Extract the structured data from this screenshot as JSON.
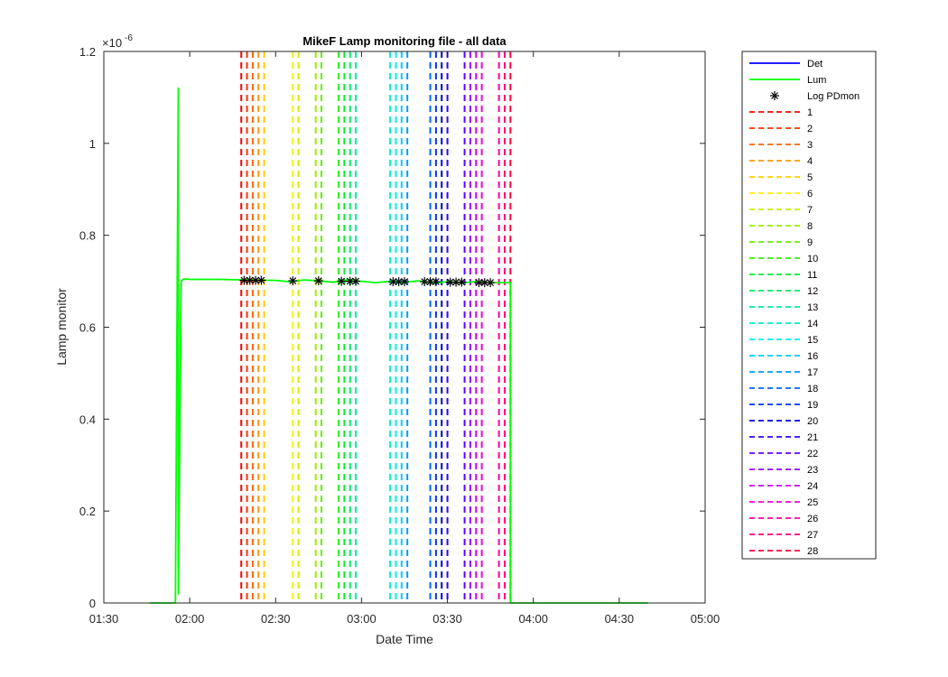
{
  "chart_data": {
    "type": "line",
    "title": "MikeF Lamp monitoring file - all data",
    "xlabel": "Date Time",
    "ylabel": "Lamp monitor",
    "y_exponent_label": "×10",
    "y_exponent_power": "-6",
    "xlim": [
      "01:30",
      "05:00"
    ],
    "ylim": [
      0,
      1.2
    ],
    "x_ticks": [
      "01:30",
      "02:00",
      "02:30",
      "03:00",
      "03:30",
      "04:00",
      "04:30",
      "05:00"
    ],
    "y_ticks": [
      {
        "value": 0,
        "label": "0"
      },
      {
        "value": 0.2,
        "label": "0.2"
      },
      {
        "value": 0.4,
        "label": "0.4"
      },
      {
        "value": 0.6,
        "label": "0.6"
      },
      {
        "value": 0.8,
        "label": "0.8"
      },
      {
        "value": 1.0,
        "label": "1"
      },
      {
        "value": 1.2,
        "label": "1.2"
      }
    ],
    "grid": false,
    "legend_position": "outside-right",
    "series": [
      {
        "name": "Det",
        "color": "#0000ff",
        "style": "solid",
        "x": [],
        "y": []
      },
      {
        "name": "Lum",
        "color": "#00ff00",
        "style": "solid",
        "x": [
          "01:46",
          "01:51",
          "01:55",
          "01:56",
          "01:56",
          "01:57",
          "01:58",
          "02:00",
          "02:10",
          "02:20",
          "02:30",
          "02:35",
          "02:40",
          "02:45",
          "02:50",
          "02:55",
          "03:00",
          "03:05",
          "03:10",
          "03:15",
          "03:20",
          "03:25",
          "03:30",
          "03:35",
          "03:40",
          "03:45",
          "03:50",
          "03:52",
          "03:52",
          "03:55",
          "04:10",
          "04:30",
          "04:40"
        ],
        "y": [
          0,
          0,
          0,
          1.12,
          0.02,
          0.7,
          0.705,
          0.704,
          0.704,
          0.703,
          0.702,
          0.699,
          0.703,
          0.701,
          0.698,
          0.703,
          0.7,
          0.697,
          0.7,
          0.698,
          0.701,
          0.696,
          0.699,
          0.697,
          0.699,
          0.697,
          0.697,
          0.697,
          0.0,
          0.0,
          0.0,
          0.0,
          0.0
        ]
      },
      {
        "name": "Log PDmon",
        "color": "#000000",
        "style": "asterisk",
        "x": [
          "02:19",
          "02:21",
          "02:23",
          "02:25",
          "02:36",
          "02:45",
          "02:53",
          "02:56",
          "02:58",
          "03:11",
          "03:13",
          "03:15",
          "03:22",
          "03:24",
          "03:26",
          "03:31",
          "03:33",
          "03:35",
          "03:41",
          "03:43",
          "03:45"
        ],
        "y": [
          0.702,
          0.702,
          0.702,
          0.702,
          0.701,
          0.701,
          0.7,
          0.7,
          0.7,
          0.699,
          0.699,
          0.699,
          0.699,
          0.699,
          0.699,
          0.698,
          0.698,
          0.698,
          0.697,
          0.697,
          0.697
        ]
      }
    ],
    "vertical_lines": [
      {
        "name": "1",
        "x": "02:18",
        "color": "#ff0000"
      },
      {
        "name": "2",
        "x": "02:20",
        "color": "#ff3300"
      },
      {
        "name": "3",
        "x": "02:22",
        "color": "#ff6600"
      },
      {
        "name": "4",
        "x": "02:24",
        "color": "#ff9900"
      },
      {
        "name": "5",
        "x": "02:26",
        "color": "#ffcc00"
      },
      {
        "name": "6",
        "x": "02:36",
        "color": "#ffee00"
      },
      {
        "name": "7",
        "x": "02:38",
        "color": "#ccee00"
      },
      {
        "name": "8",
        "x": "02:44",
        "color": "#99ee00"
      },
      {
        "name": "9",
        "x": "02:46",
        "color": "#66ee00"
      },
      {
        "name": "10",
        "x": "02:52",
        "color": "#33ee00"
      },
      {
        "name": "11",
        "x": "02:54",
        "color": "#00ee33"
      },
      {
        "name": "12",
        "x": "02:56",
        "color": "#00ee66"
      },
      {
        "name": "13",
        "x": "02:58",
        "color": "#00ee99"
      },
      {
        "name": "14",
        "x": "03:10",
        "color": "#00eecc"
      },
      {
        "name": "15",
        "x": "03:12",
        "color": "#00eeee"
      },
      {
        "name": "16",
        "x": "03:14",
        "color": "#00ccff"
      },
      {
        "name": "17",
        "x": "03:16",
        "color": "#0099ff"
      },
      {
        "name": "18",
        "x": "03:24",
        "color": "#0066ff"
      },
      {
        "name": "19",
        "x": "03:26",
        "color": "#0033ff"
      },
      {
        "name": "20",
        "x": "03:28",
        "color": "#0000dd"
      },
      {
        "name": "21",
        "x": "03:30",
        "color": "#3300ff"
      },
      {
        "name": "22",
        "x": "03:36",
        "color": "#6600ff"
      },
      {
        "name": "23",
        "x": "03:38",
        "color": "#9900ff"
      },
      {
        "name": "24",
        "x": "03:40",
        "color": "#cc00ff"
      },
      {
        "name": "25",
        "x": "03:42",
        "color": "#ee00dd"
      },
      {
        "name": "26",
        "x": "03:48",
        "color": "#ff00aa"
      },
      {
        "name": "27",
        "x": "03:50",
        "color": "#ff0077"
      },
      {
        "name": "28",
        "x": "03:52",
        "color": "#ff0044"
      }
    ]
  }
}
